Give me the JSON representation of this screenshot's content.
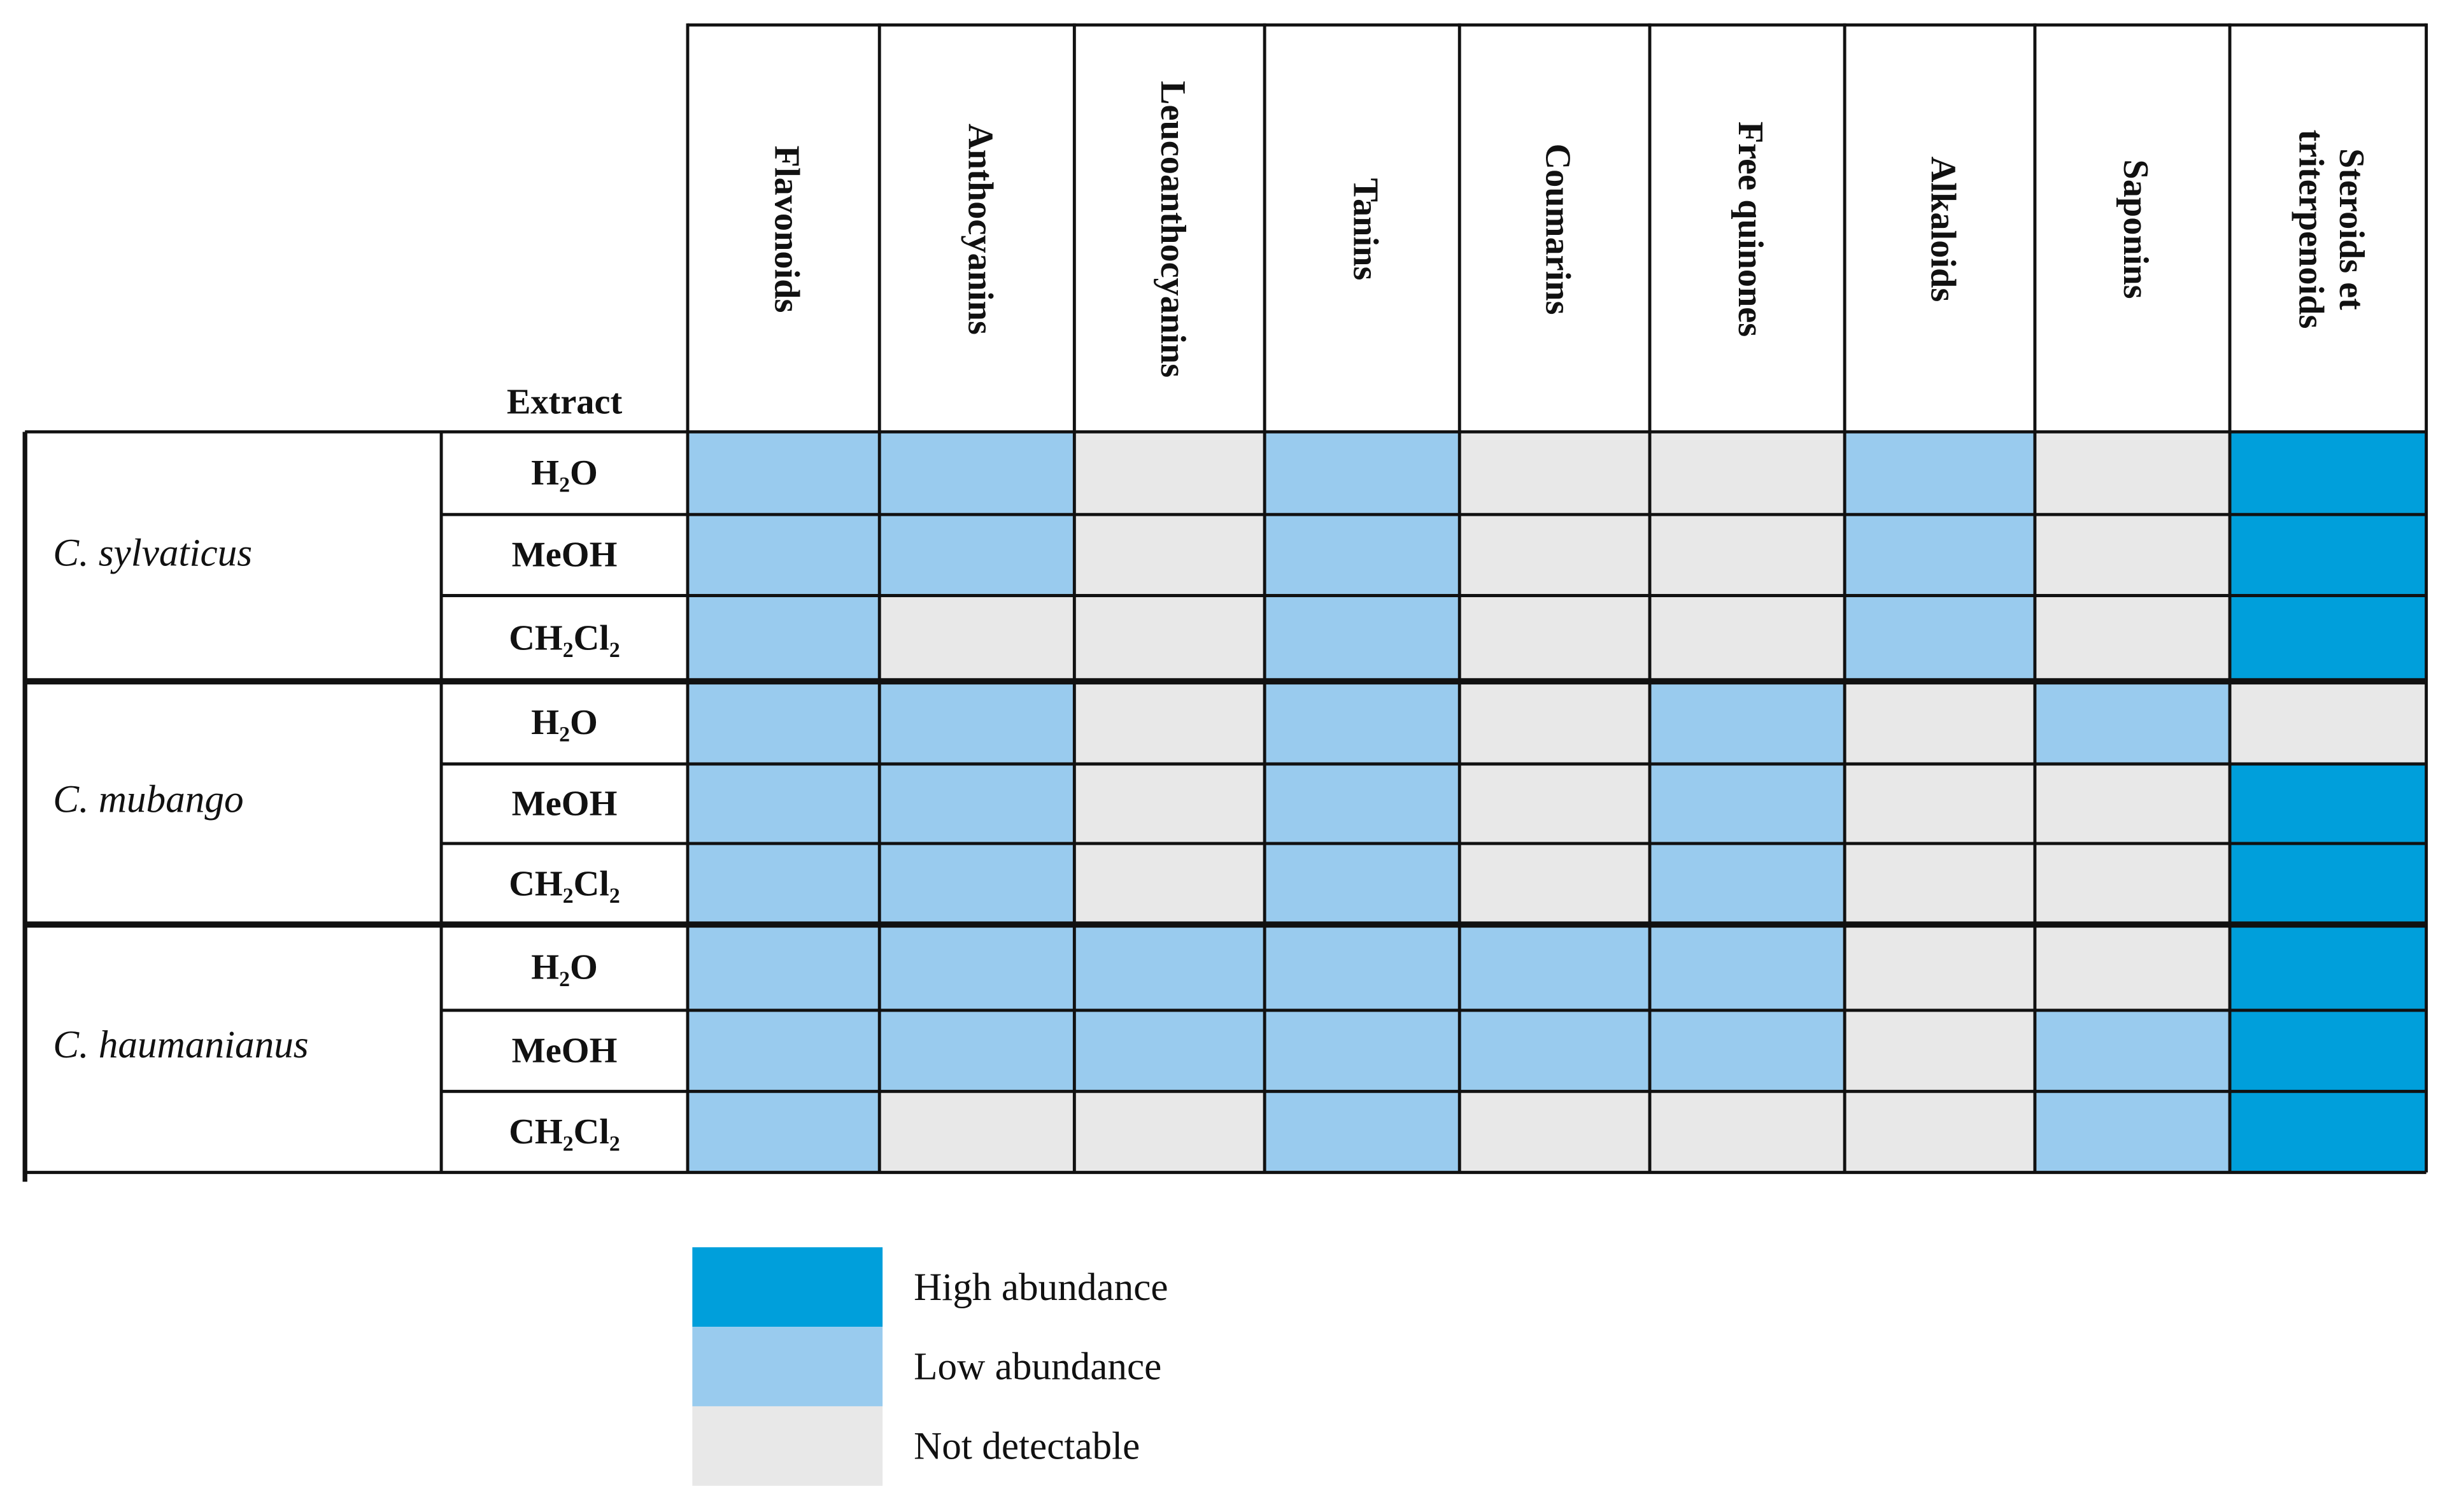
{
  "table": {
    "extract_header": "Extract",
    "columns": [
      "Flavonoids",
      "Anthocyanins",
      "Leucoanthocyanins",
      "Tanins",
      "Coumarins",
      "Free quinones",
      "Alkaloids",
      "Saponins",
      "Steroids et triterpenoids"
    ],
    "groups": [
      {
        "species": "C. sylvaticus",
        "rows": [
          {
            "extract": "H₂O",
            "cells": [
              "#99cbee",
              "#99cbee",
              "#e8e8e8",
              "#99cbee",
              "#e8e8e8",
              "#e8e8e8",
              "#99cbee",
              "#e8e8e8",
              "#009fdb"
            ]
          },
          {
            "extract": "MeOH",
            "cells": [
              "#99cbee",
              "#99cbee",
              "#e8e8e8",
              "#99cbee",
              "#e8e8e8",
              "#e8e8e8",
              "#99cbee",
              "#e8e8e8",
              "#009fdb"
            ]
          },
          {
            "extract": "CH₂Cl₂",
            "cells": [
              "#99cbee",
              "#e8e8e8",
              "#e8e8e8",
              "#99cbee",
              "#e8e8e8",
              "#e8e8e8",
              "#99cbee",
              "#e8e8e8",
              "#009fdb"
            ]
          }
        ]
      },
      {
        "species": "C. mubango",
        "rows": [
          {
            "extract": "H₂O",
            "cells": [
              "#99cbee",
              "#99cbee",
              "#e8e8e8",
              "#99cbee",
              "#e8e8e8",
              "#99cbee",
              "#e8e8e8",
              "#99cbee",
              "#e8e8e8"
            ]
          },
          {
            "extract": "MeOH",
            "cells": [
              "#99cbee",
              "#99cbee",
              "#e8e8e8",
              "#99cbee",
              "#e8e8e8",
              "#99cbee",
              "#e8e8e8",
              "#e8e8e8",
              "#009fdb"
            ]
          },
          {
            "extract": "CH₂Cl₂",
            "cells": [
              "#99cbee",
              "#99cbee",
              "#e8e8e8",
              "#99cbee",
              "#e8e8e8",
              "#99cbee",
              "#e8e8e8",
              "#e8e8e8",
              "#009fdb"
            ]
          }
        ]
      },
      {
        "species": "C. haumanianus",
        "rows": [
          {
            "extract": "H₂O",
            "cells": [
              "#99cbee",
              "#99cbee",
              "#99cbee",
              "#99cbee",
              "#99cbee",
              "#99cbee",
              "#e8e8e8",
              "#e8e8e8",
              "#009fdb"
            ]
          },
          {
            "extract": "MeOH",
            "cells": [
              "#99cbee",
              "#99cbee",
              "#99cbee",
              "#99cbee",
              "#99cbee",
              "#99cbee",
              "#e8e8e8",
              "#99cbee",
              "#009fdb"
            ]
          },
          {
            "extract": "CH₂Cl₂",
            "cells": [
              "#99cbee",
              "#e8e8e8",
              "#e8e8e8",
              "#99cbee",
              "#e8e8e8",
              "#e8e8e8",
              "#e8e8e8",
              "#99cbee",
              "#009fdb"
            ]
          }
        ]
      }
    ]
  },
  "legend": [
    {
      "label": "High abundance",
      "color": "#009fdb"
    },
    {
      "label": "Low abundance",
      "color": "#99cbee"
    },
    {
      "label": "Not detectable",
      "color": "#e8e8e8"
    }
  ]
}
